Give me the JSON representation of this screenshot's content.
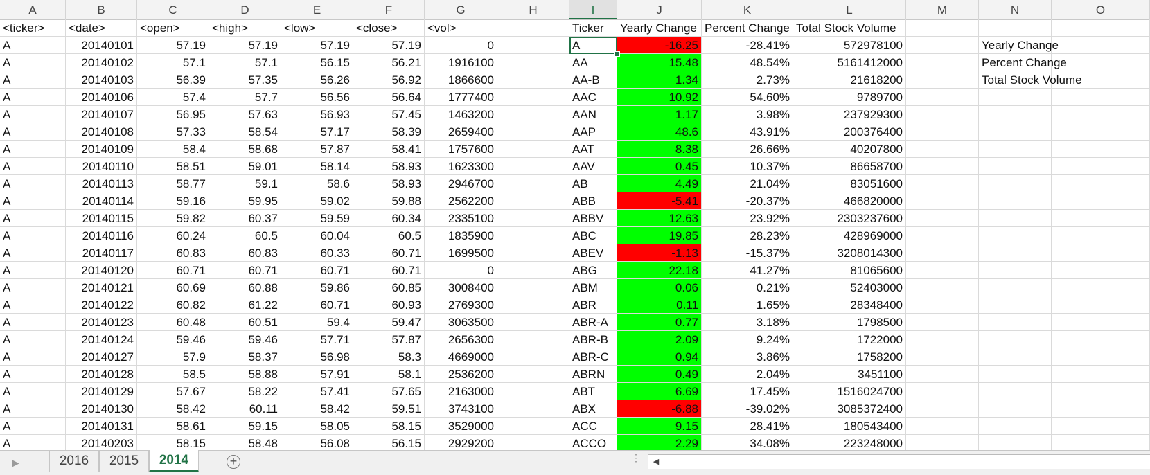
{
  "columns": [
    "A",
    "B",
    "C",
    "D",
    "E",
    "F",
    "G",
    "H",
    "I",
    "J",
    "K",
    "L",
    "M",
    "N",
    "O"
  ],
  "active_column": "I",
  "header_row": {
    "A": "<ticker>",
    "B": "<date>",
    "C": "<open>",
    "D": "<high>",
    "E": "<low>",
    "F": "<close>",
    "G": "<vol>",
    "I": "Ticker",
    "J": "Yearly Change",
    "K": "Percent Change",
    "L": "Total Stock Volume"
  },
  "summary_labels": [
    "Yearly Change",
    "Percent Change",
    "Total Stock Volume"
  ],
  "raw_rows": [
    [
      "A",
      "20140101",
      "57.19",
      "57.19",
      "57.19",
      "57.19",
      "0"
    ],
    [
      "A",
      "20140102",
      "57.1",
      "57.1",
      "56.15",
      "56.21",
      "1916100"
    ],
    [
      "A",
      "20140103",
      "56.39",
      "57.35",
      "56.26",
      "56.92",
      "1866600"
    ],
    [
      "A",
      "20140106",
      "57.4",
      "57.7",
      "56.56",
      "56.64",
      "1777400"
    ],
    [
      "A",
      "20140107",
      "56.95",
      "57.63",
      "56.93",
      "57.45",
      "1463200"
    ],
    [
      "A",
      "20140108",
      "57.33",
      "58.54",
      "57.17",
      "58.39",
      "2659400"
    ],
    [
      "A",
      "20140109",
      "58.4",
      "58.68",
      "57.87",
      "58.41",
      "1757600"
    ],
    [
      "A",
      "20140110",
      "58.51",
      "59.01",
      "58.14",
      "58.93",
      "1623300"
    ],
    [
      "A",
      "20140113",
      "58.77",
      "59.1",
      "58.6",
      "58.93",
      "2946700"
    ],
    [
      "A",
      "20140114",
      "59.16",
      "59.95",
      "59.02",
      "59.88",
      "2562200"
    ],
    [
      "A",
      "20140115",
      "59.82",
      "60.37",
      "59.59",
      "60.34",
      "2335100"
    ],
    [
      "A",
      "20140116",
      "60.24",
      "60.5",
      "60.04",
      "60.5",
      "1835900"
    ],
    [
      "A",
      "20140117",
      "60.83",
      "60.83",
      "60.33",
      "60.71",
      "1699500"
    ],
    [
      "A",
      "20140120",
      "60.71",
      "60.71",
      "60.71",
      "60.71",
      "0"
    ],
    [
      "A",
      "20140121",
      "60.69",
      "60.88",
      "59.86",
      "60.85",
      "3008400"
    ],
    [
      "A",
      "20140122",
      "60.82",
      "61.22",
      "60.71",
      "60.93",
      "2769300"
    ],
    [
      "A",
      "20140123",
      "60.48",
      "60.51",
      "59.4",
      "59.47",
      "3063500"
    ],
    [
      "A",
      "20140124",
      "59.46",
      "59.46",
      "57.71",
      "57.87",
      "2656300"
    ],
    [
      "A",
      "20140127",
      "57.9",
      "58.37",
      "56.98",
      "58.3",
      "4669000"
    ],
    [
      "A",
      "20140128",
      "58.5",
      "58.88",
      "57.91",
      "58.1",
      "2536200"
    ],
    [
      "A",
      "20140129",
      "57.67",
      "58.22",
      "57.41",
      "57.65",
      "2163000"
    ],
    [
      "A",
      "20140130",
      "58.42",
      "60.11",
      "58.42",
      "59.51",
      "3743100"
    ],
    [
      "A",
      "20140131",
      "58.61",
      "59.15",
      "58.05",
      "58.15",
      "3529000"
    ],
    [
      "A",
      "20140203",
      "58.15",
      "58.48",
      "56.08",
      "56.15",
      "2929200"
    ]
  ],
  "summary_rows": [
    {
      "ticker": "A",
      "change": "-16.25",
      "pct": "-28.41%",
      "volume": "572978100",
      "status": "negative"
    },
    {
      "ticker": "AA",
      "change": "15.48",
      "pct": "48.54%",
      "volume": "5161412000",
      "status": "positive"
    },
    {
      "ticker": "AA-B",
      "change": "1.34",
      "pct": "2.73%",
      "volume": "21618200",
      "status": "positive"
    },
    {
      "ticker": "AAC",
      "change": "10.92",
      "pct": "54.60%",
      "volume": "9789700",
      "status": "positive"
    },
    {
      "ticker": "AAN",
      "change": "1.17",
      "pct": "3.98%",
      "volume": "237929300",
      "status": "positive"
    },
    {
      "ticker": "AAP",
      "change": "48.6",
      "pct": "43.91%",
      "volume": "200376400",
      "status": "positive"
    },
    {
      "ticker": "AAT",
      "change": "8.38",
      "pct": "26.66%",
      "volume": "40207800",
      "status": "positive"
    },
    {
      "ticker": "AAV",
      "change": "0.45",
      "pct": "10.37%",
      "volume": "86658700",
      "status": "positive"
    },
    {
      "ticker": "AB",
      "change": "4.49",
      "pct": "21.04%",
      "volume": "83051600",
      "status": "positive"
    },
    {
      "ticker": "ABB",
      "change": "-5.41",
      "pct": "-20.37%",
      "volume": "466820000",
      "status": "negative"
    },
    {
      "ticker": "ABBV",
      "change": "12.63",
      "pct": "23.92%",
      "volume": "2303237600",
      "status": "positive"
    },
    {
      "ticker": "ABC",
      "change": "19.85",
      "pct": "28.23%",
      "volume": "428969000",
      "status": "positive"
    },
    {
      "ticker": "ABEV",
      "change": "-1.13",
      "pct": "-15.37%",
      "volume": "3208014300",
      "status": "negative"
    },
    {
      "ticker": "ABG",
      "change": "22.18",
      "pct": "41.27%",
      "volume": "81065600",
      "status": "positive"
    },
    {
      "ticker": "ABM",
      "change": "0.06",
      "pct": "0.21%",
      "volume": "52403000",
      "status": "positive"
    },
    {
      "ticker": "ABR",
      "change": "0.11",
      "pct": "1.65%",
      "volume": "28348400",
      "status": "positive"
    },
    {
      "ticker": "ABR-A",
      "change": "0.77",
      "pct": "3.18%",
      "volume": "1798500",
      "status": "positive"
    },
    {
      "ticker": "ABR-B",
      "change": "2.09",
      "pct": "9.24%",
      "volume": "1722000",
      "status": "positive"
    },
    {
      "ticker": "ABR-C",
      "change": "0.94",
      "pct": "3.86%",
      "volume": "1758200",
      "status": "positive"
    },
    {
      "ticker": "ABRN",
      "change": "0.49",
      "pct": "2.04%",
      "volume": "3451100",
      "status": "positive"
    },
    {
      "ticker": "ABT",
      "change": "6.69",
      "pct": "17.45%",
      "volume": "1516024700",
      "status": "positive"
    },
    {
      "ticker": "ABX",
      "change": "-6.88",
      "pct": "-39.02%",
      "volume": "3085372400",
      "status": "negative"
    },
    {
      "ticker": "ACC",
      "change": "9.15",
      "pct": "28.41%",
      "volume": "180543400",
      "status": "positive"
    },
    {
      "ticker": "ACCO",
      "change": "2.29",
      "pct": "34.08%",
      "volume": "223248000",
      "status": "positive"
    }
  ],
  "selected_cell": {
    "ticker": "A"
  },
  "status_colors": {
    "negative": "#ff0000",
    "positive": "#00ff00",
    "accent": "#217346"
  },
  "sheet_tabs": [
    {
      "label": "2016",
      "active": false
    },
    {
      "label": "2015",
      "active": false
    },
    {
      "label": "2014",
      "active": true
    }
  ],
  "icons": {
    "add_sheet": "plus-circle-icon",
    "scroll_left": "scroll-left-icon",
    "tab_nav": "tab-nav-arrow-icon"
  }
}
